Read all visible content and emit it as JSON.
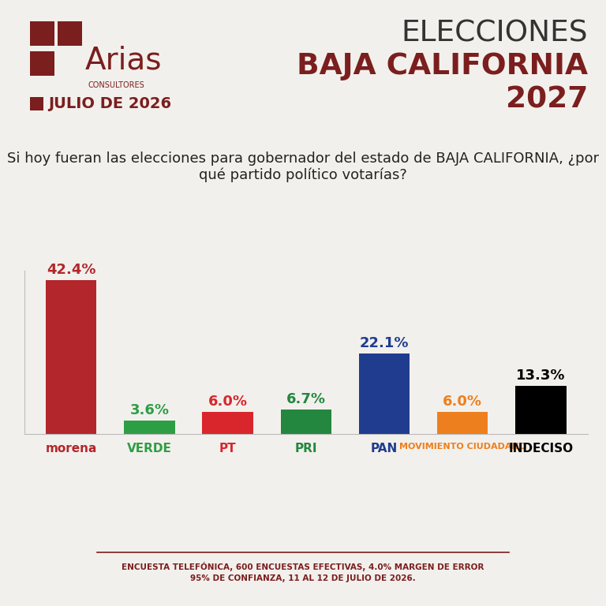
{
  "header": {
    "brand": "Arias",
    "brand_sub": "CONSULTORES",
    "date": "JULIO DE 2026",
    "title_lines": [
      "ELECCIONES",
      "BAJA CALIFORNIA",
      "2027"
    ]
  },
  "chart_data": {
    "type": "bar",
    "title": "Si hoy fueran las elecciones para gobernador del estado de BAJA CALIFORNIA, ¿por qué partido político votarías?",
    "categories": [
      "morena",
      "VERDE",
      "PT",
      "PRI",
      "PAN",
      "MOVIMIENTO CIUDADANO",
      "INDECISO"
    ],
    "values": [
      42.4,
      3.6,
      6.0,
      6.7,
      22.1,
      6.0,
      13.3
    ],
    "value_labels": [
      "42.4%",
      "3.6%",
      "6.0%",
      "6.7%",
      "22.1%",
      "6.0%",
      "13.3%"
    ],
    "colors": [
      "#B3262B",
      "#2E9E45",
      "#D8262C",
      "#23873F",
      "#1F3C8F",
      "#EE7F1E",
      "#000000"
    ],
    "ylim": [
      0,
      45
    ],
    "yticks": [],
    "grid": false,
    "data_labels": true,
    "tick_labels": "x"
  },
  "footer": [
    "ENCUESTA TELEFÓNICA, 600 ENCUESTAS EFECTIVAS, 4.0% MARGEN DE ERROR",
    "95% DE CONFIANZA, 11 AL 12 DE JULIO DE 2026."
  ]
}
